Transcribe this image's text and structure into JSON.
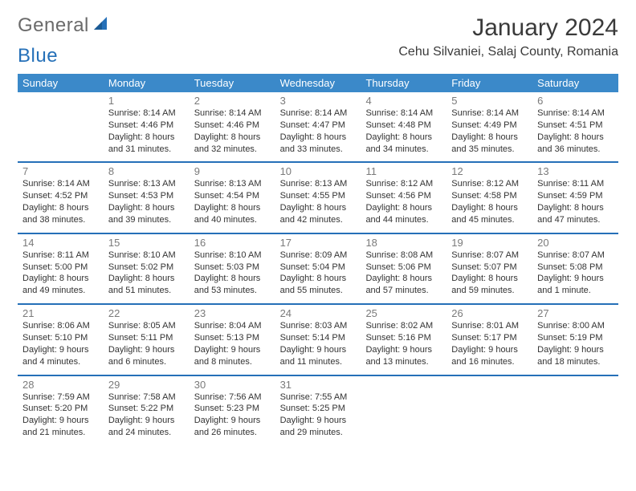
{
  "logo": {
    "text1": "General",
    "text2": "Blue"
  },
  "title": "January 2024",
  "location": "Cehu Silvaniei, Salaj County, Romania",
  "colors": {
    "header_bg": "#3b89c9",
    "header_text": "#ffffff",
    "divider": "#2570b8",
    "logo_gray": "#6a6a6a",
    "logo_blue": "#2570b8",
    "daynum": "#7a7a7a",
    "body_text": "#333333",
    "background": "#ffffff"
  },
  "day_headers": [
    "Sunday",
    "Monday",
    "Tuesday",
    "Wednesday",
    "Thursday",
    "Friday",
    "Saturday"
  ],
  "weeks": [
    [
      {
        "n": "",
        "sr": "",
        "ss": "",
        "dl1": "",
        "dl2": ""
      },
      {
        "n": "1",
        "sr": "Sunrise: 8:14 AM",
        "ss": "Sunset: 4:46 PM",
        "dl1": "Daylight: 8 hours",
        "dl2": "and 31 minutes."
      },
      {
        "n": "2",
        "sr": "Sunrise: 8:14 AM",
        "ss": "Sunset: 4:46 PM",
        "dl1": "Daylight: 8 hours",
        "dl2": "and 32 minutes."
      },
      {
        "n": "3",
        "sr": "Sunrise: 8:14 AM",
        "ss": "Sunset: 4:47 PM",
        "dl1": "Daylight: 8 hours",
        "dl2": "and 33 minutes."
      },
      {
        "n": "4",
        "sr": "Sunrise: 8:14 AM",
        "ss": "Sunset: 4:48 PM",
        "dl1": "Daylight: 8 hours",
        "dl2": "and 34 minutes."
      },
      {
        "n": "5",
        "sr": "Sunrise: 8:14 AM",
        "ss": "Sunset: 4:49 PM",
        "dl1": "Daylight: 8 hours",
        "dl2": "and 35 minutes."
      },
      {
        "n": "6",
        "sr": "Sunrise: 8:14 AM",
        "ss": "Sunset: 4:51 PM",
        "dl1": "Daylight: 8 hours",
        "dl2": "and 36 minutes."
      }
    ],
    [
      {
        "n": "7",
        "sr": "Sunrise: 8:14 AM",
        "ss": "Sunset: 4:52 PM",
        "dl1": "Daylight: 8 hours",
        "dl2": "and 38 minutes."
      },
      {
        "n": "8",
        "sr": "Sunrise: 8:13 AM",
        "ss": "Sunset: 4:53 PM",
        "dl1": "Daylight: 8 hours",
        "dl2": "and 39 minutes."
      },
      {
        "n": "9",
        "sr": "Sunrise: 8:13 AM",
        "ss": "Sunset: 4:54 PM",
        "dl1": "Daylight: 8 hours",
        "dl2": "and 40 minutes."
      },
      {
        "n": "10",
        "sr": "Sunrise: 8:13 AM",
        "ss": "Sunset: 4:55 PM",
        "dl1": "Daylight: 8 hours",
        "dl2": "and 42 minutes."
      },
      {
        "n": "11",
        "sr": "Sunrise: 8:12 AM",
        "ss": "Sunset: 4:56 PM",
        "dl1": "Daylight: 8 hours",
        "dl2": "and 44 minutes."
      },
      {
        "n": "12",
        "sr": "Sunrise: 8:12 AM",
        "ss": "Sunset: 4:58 PM",
        "dl1": "Daylight: 8 hours",
        "dl2": "and 45 minutes."
      },
      {
        "n": "13",
        "sr": "Sunrise: 8:11 AM",
        "ss": "Sunset: 4:59 PM",
        "dl1": "Daylight: 8 hours",
        "dl2": "and 47 minutes."
      }
    ],
    [
      {
        "n": "14",
        "sr": "Sunrise: 8:11 AM",
        "ss": "Sunset: 5:00 PM",
        "dl1": "Daylight: 8 hours",
        "dl2": "and 49 minutes."
      },
      {
        "n": "15",
        "sr": "Sunrise: 8:10 AM",
        "ss": "Sunset: 5:02 PM",
        "dl1": "Daylight: 8 hours",
        "dl2": "and 51 minutes."
      },
      {
        "n": "16",
        "sr": "Sunrise: 8:10 AM",
        "ss": "Sunset: 5:03 PM",
        "dl1": "Daylight: 8 hours",
        "dl2": "and 53 minutes."
      },
      {
        "n": "17",
        "sr": "Sunrise: 8:09 AM",
        "ss": "Sunset: 5:04 PM",
        "dl1": "Daylight: 8 hours",
        "dl2": "and 55 minutes."
      },
      {
        "n": "18",
        "sr": "Sunrise: 8:08 AM",
        "ss": "Sunset: 5:06 PM",
        "dl1": "Daylight: 8 hours",
        "dl2": "and 57 minutes."
      },
      {
        "n": "19",
        "sr": "Sunrise: 8:07 AM",
        "ss": "Sunset: 5:07 PM",
        "dl1": "Daylight: 8 hours",
        "dl2": "and 59 minutes."
      },
      {
        "n": "20",
        "sr": "Sunrise: 8:07 AM",
        "ss": "Sunset: 5:08 PM",
        "dl1": "Daylight: 9 hours",
        "dl2": "and 1 minute."
      }
    ],
    [
      {
        "n": "21",
        "sr": "Sunrise: 8:06 AM",
        "ss": "Sunset: 5:10 PM",
        "dl1": "Daylight: 9 hours",
        "dl2": "and 4 minutes."
      },
      {
        "n": "22",
        "sr": "Sunrise: 8:05 AM",
        "ss": "Sunset: 5:11 PM",
        "dl1": "Daylight: 9 hours",
        "dl2": "and 6 minutes."
      },
      {
        "n": "23",
        "sr": "Sunrise: 8:04 AM",
        "ss": "Sunset: 5:13 PM",
        "dl1": "Daylight: 9 hours",
        "dl2": "and 8 minutes."
      },
      {
        "n": "24",
        "sr": "Sunrise: 8:03 AM",
        "ss": "Sunset: 5:14 PM",
        "dl1": "Daylight: 9 hours",
        "dl2": "and 11 minutes."
      },
      {
        "n": "25",
        "sr": "Sunrise: 8:02 AM",
        "ss": "Sunset: 5:16 PM",
        "dl1": "Daylight: 9 hours",
        "dl2": "and 13 minutes."
      },
      {
        "n": "26",
        "sr": "Sunrise: 8:01 AM",
        "ss": "Sunset: 5:17 PM",
        "dl1": "Daylight: 9 hours",
        "dl2": "and 16 minutes."
      },
      {
        "n": "27",
        "sr": "Sunrise: 8:00 AM",
        "ss": "Sunset: 5:19 PM",
        "dl1": "Daylight: 9 hours",
        "dl2": "and 18 minutes."
      }
    ],
    [
      {
        "n": "28",
        "sr": "Sunrise: 7:59 AM",
        "ss": "Sunset: 5:20 PM",
        "dl1": "Daylight: 9 hours",
        "dl2": "and 21 minutes."
      },
      {
        "n": "29",
        "sr": "Sunrise: 7:58 AM",
        "ss": "Sunset: 5:22 PM",
        "dl1": "Daylight: 9 hours",
        "dl2": "and 24 minutes."
      },
      {
        "n": "30",
        "sr": "Sunrise: 7:56 AM",
        "ss": "Sunset: 5:23 PM",
        "dl1": "Daylight: 9 hours",
        "dl2": "and 26 minutes."
      },
      {
        "n": "31",
        "sr": "Sunrise: 7:55 AM",
        "ss": "Sunset: 5:25 PM",
        "dl1": "Daylight: 9 hours",
        "dl2": "and 29 minutes."
      },
      {
        "n": "",
        "sr": "",
        "ss": "",
        "dl1": "",
        "dl2": ""
      },
      {
        "n": "",
        "sr": "",
        "ss": "",
        "dl1": "",
        "dl2": ""
      },
      {
        "n": "",
        "sr": "",
        "ss": "",
        "dl1": "",
        "dl2": ""
      }
    ]
  ]
}
